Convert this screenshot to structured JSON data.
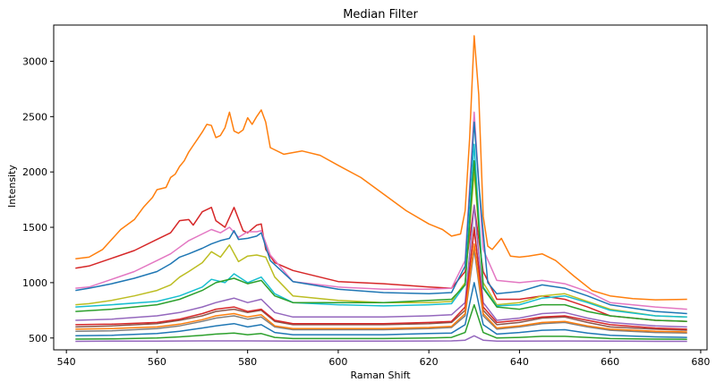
{
  "chart_data": {
    "type": "line",
    "title": "Median Filter",
    "xlabel": "Raman Shift",
    "ylabel": "Intensity",
    "xlim": [
      537.2,
      681.4
    ],
    "ylim": [
      393,
      3327
    ],
    "xticks": [
      540,
      560,
      580,
      600,
      620,
      640,
      660,
      680
    ],
    "yticks": [
      500,
      1000,
      1500,
      2000,
      2500,
      3000
    ],
    "grid": false,
    "legend": "none",
    "note_series": "Many overlapping spectra are drawn; the values below describe the prominent visible curves read from the axes.",
    "series": [
      {
        "color": "#ff7f0e",
        "x": [
          542,
          545,
          548,
          550,
          552,
          555,
          557,
          559,
          560,
          562,
          563,
          564,
          565,
          566,
          567,
          568,
          569,
          570,
          571,
          572,
          573,
          574,
          575,
          576,
          577,
          578,
          579,
          580,
          581,
          582,
          583,
          584,
          585,
          588,
          592,
          596,
          600,
          605,
          610,
          615,
          620,
          623,
          625,
          627,
          628,
          629,
          630,
          631,
          632,
          633,
          634,
          635,
          636,
          638,
          640,
          642,
          645,
          648,
          652,
          656,
          660,
          665,
          670,
          677
        ],
        "y": [
          1215,
          1230,
          1300,
          1390,
          1480,
          1570,
          1680,
          1770,
          1840,
          1860,
          1950,
          1980,
          2050,
          2100,
          2180,
          2240,
          2300,
          2360,
          2430,
          2420,
          2310,
          2330,
          2400,
          2540,
          2370,
          2350,
          2380,
          2490,
          2430,
          2500,
          2560,
          2450,
          2220,
          2160,
          2190,
          2150,
          2060,
          1950,
          1800,
          1650,
          1530,
          1480,
          1420,
          1440,
          1650,
          2300,
          3230,
          2700,
          1600,
          1330,
          1300,
          1350,
          1400,
          1240,
          1230,
          1240,
          1260,
          1200,
          1060,
          930,
          880,
          855,
          845,
          850
        ]
      },
      {
        "color": "#d62728",
        "x": [
          542,
          545,
          550,
          555,
          560,
          563,
          565,
          567,
          568,
          570,
          572,
          573,
          575,
          577,
          579,
          580,
          582,
          583,
          584,
          586,
          590,
          600,
          610,
          620,
          625,
          628,
          630,
          632,
          635,
          640,
          645,
          650,
          655,
          660,
          670,
          677
        ],
        "y": [
          1130,
          1150,
          1220,
          1290,
          1390,
          1450,
          1560,
          1570,
          1520,
          1640,
          1680,
          1560,
          1500,
          1680,
          1470,
          1450,
          1520,
          1530,
          1300,
          1180,
          1110,
          1010,
          990,
          960,
          950,
          1100,
          1700,
          1100,
          850,
          850,
          880,
          850,
          780,
          700,
          660,
          650
        ]
      },
      {
        "color": "#e377c2",
        "x": [
          542,
          545,
          550,
          555,
          560,
          563,
          565,
          567,
          570,
          572,
          574,
          576,
          578,
          580,
          582,
          583,
          585,
          590,
          600,
          610,
          620,
          625,
          628,
          630,
          632,
          635,
          640,
          645,
          650,
          655,
          660,
          670,
          677
        ],
        "y": [
          950,
          960,
          1030,
          1100,
          1200,
          1260,
          1320,
          1380,
          1440,
          1480,
          1450,
          1500,
          1410,
          1460,
          1460,
          1470,
          1250,
          1010,
          960,
          940,
          940,
          950,
          1200,
          2540,
          1300,
          1020,
          1000,
          1020,
          990,
          920,
          820,
          780,
          760
        ]
      },
      {
        "color": "#1f77b4",
        "x": [
          542,
          545,
          550,
          555,
          560,
          563,
          565,
          567,
          570,
          572,
          574,
          576,
          577,
          578,
          580,
          582,
          583,
          585,
          590,
          600,
          610,
          620,
          625,
          628,
          630,
          631,
          633,
          635,
          640,
          645,
          650,
          655,
          660,
          670,
          677
        ],
        "y": [
          930,
          950,
          990,
          1040,
          1100,
          1170,
          1230,
          1260,
          1310,
          1350,
          1380,
          1400,
          1470,
          1390,
          1400,
          1420,
          1450,
          1200,
          1010,
          940,
          910,
          900,
          910,
          1150,
          2450,
          1900,
          1000,
          900,
          920,
          980,
          950,
          880,
          800,
          740,
          720
        ]
      },
      {
        "color": "#bcbd22",
        "x": [
          542,
          545,
          550,
          555,
          560,
          563,
          565,
          567,
          570,
          572,
          574,
          576,
          578,
          580,
          582,
          584,
          586,
          590,
          600,
          610,
          620,
          625,
          628,
          630,
          632,
          635,
          640,
          645,
          650,
          655,
          660,
          670,
          677
        ],
        "y": [
          800,
          810,
          840,
          880,
          930,
          980,
          1050,
          1100,
          1180,
          1280,
          1230,
          1340,
          1190,
          1240,
          1250,
          1230,
          1050,
          880,
          840,
          820,
          820,
          830,
          1000,
          2000,
          1000,
          800,
          820,
          880,
          900,
          830,
          760,
          700,
          690
        ]
      },
      {
        "color": "#17becf",
        "x": [
          542,
          550,
          560,
          565,
          570,
          572,
          575,
          577,
          580,
          583,
          586,
          590,
          600,
          610,
          620,
          625,
          628,
          630,
          632,
          635,
          640,
          645,
          650,
          655,
          660,
          670,
          677
        ],
        "y": [
          780,
          800,
          830,
          880,
          960,
          1030,
          1000,
          1080,
          1000,
          1050,
          900,
          820,
          800,
          790,
          800,
          810,
          980,
          2250,
          960,
          790,
          800,
          860,
          880,
          820,
          750,
          700,
          690
        ]
      },
      {
        "color": "#2ca02c",
        "x": [
          542,
          550,
          560,
          565,
          570,
          573,
          577,
          580,
          583,
          586,
          590,
          600,
          610,
          620,
          625,
          628,
          630,
          632,
          635,
          640,
          645,
          650,
          655,
          660,
          670,
          677
        ],
        "y": [
          740,
          760,
          800,
          850,
          930,
          1000,
          1040,
          990,
          1020,
          880,
          820,
          820,
          820,
          840,
          850,
          980,
          2100,
          950,
          780,
          760,
          800,
          800,
          740,
          700,
          660,
          650
        ]
      },
      {
        "color": "#9467bd",
        "x": [
          542,
          550,
          560,
          565,
          570,
          573,
          577,
          580,
          583,
          586,
          590,
          600,
          610,
          620,
          625,
          628,
          630,
          632,
          635,
          640,
          645,
          650,
          655,
          660,
          670,
          677
        ],
        "y": [
          660,
          670,
          700,
          730,
          780,
          820,
          860,
          820,
          850,
          730,
          690,
          690,
          690,
          700,
          710,
          820,
          1700,
          820,
          660,
          680,
          720,
          730,
          680,
          640,
          610,
          600
        ]
      },
      {
        "color": "#8c564b",
        "x": [
          542,
          550,
          560,
          565,
          570,
          573,
          577,
          580,
          583,
          586,
          590,
          600,
          610,
          620,
          625,
          628,
          630,
          632,
          635,
          640,
          645,
          650,
          655,
          660,
          670,
          677
        ],
        "y": [
          600,
          610,
          630,
          660,
          700,
          740,
          760,
          730,
          750,
          650,
          620,
          620,
          620,
          630,
          640,
          750,
          1500,
          750,
          620,
          640,
          680,
          690,
          640,
          600,
          580,
          570
        ]
      },
      {
        "color": "#7f7f7f",
        "x": [
          542,
          550,
          560,
          565,
          570,
          573,
          577,
          580,
          583,
          586,
          590,
          600,
          610,
          620,
          625,
          628,
          630,
          632,
          635,
          640,
          645,
          650,
          655,
          660,
          670,
          677
        ],
        "y": [
          560,
          565,
          585,
          610,
          650,
          680,
          700,
          670,
          690,
          600,
          575,
          575,
          575,
          585,
          595,
          700,
          1300,
          700,
          580,
          600,
          630,
          640,
          600,
          570,
          550,
          545
        ]
      },
      {
        "color": "#d62728",
        "x": [
          542,
          550,
          560,
          565,
          570,
          573,
          577,
          580,
          583,
          586,
          590,
          600,
          610,
          620,
          625,
          628,
          630,
          632,
          635,
          640,
          645,
          650,
          655,
          660,
          670,
          677
        ],
        "y": [
          620,
          625,
          640,
          670,
          720,
          760,
          780,
          740,
          760,
          660,
          630,
          630,
          630,
          640,
          650,
          780,
          1480,
          780,
          640,
          660,
          690,
          700,
          660,
          620,
          590,
          580
        ]
      },
      {
        "color": "#1f77b4",
        "x": [
          542,
          550,
          560,
          565,
          570,
          573,
          577,
          580,
          583,
          586,
          590,
          600,
          610,
          620,
          625,
          628,
          630,
          632,
          635,
          640,
          645,
          650,
          655,
          660,
          670,
          677
        ],
        "y": [
          520,
          525,
          540,
          560,
          590,
          610,
          630,
          600,
          620,
          550,
          530,
          530,
          530,
          540,
          545,
          620,
          1000,
          620,
          535,
          550,
          570,
          575,
          545,
          525,
          510,
          505
        ]
      },
      {
        "color": "#ff7f0e",
        "x": [
          542,
          550,
          560,
          565,
          570,
          573,
          577,
          580,
          583,
          586,
          590,
          600,
          610,
          620,
          625,
          628,
          630,
          632,
          635,
          640,
          645,
          650,
          655,
          660,
          670,
          677
        ],
        "y": [
          580,
          585,
          600,
          625,
          665,
          700,
          720,
          690,
          710,
          610,
          585,
          585,
          585,
          595,
          605,
          720,
          1350,
          720,
          590,
          610,
          640,
          650,
          610,
          580,
          560,
          555
        ]
      },
      {
        "color": "#2ca02c",
        "x": [
          542,
          550,
          560,
          565,
          570,
          573,
          577,
          580,
          583,
          586,
          590,
          600,
          610,
          620,
          625,
          628,
          630,
          632,
          635,
          640,
          645,
          650,
          655,
          660,
          670,
          677
        ],
        "y": [
          490,
          492,
          500,
          510,
          525,
          535,
          545,
          530,
          540,
          505,
          495,
          495,
          495,
          500,
          505,
          550,
          800,
          550,
          500,
          505,
          515,
          515,
          505,
          495,
          490,
          488
        ]
      },
      {
        "color": "#9467bd",
        "x": [
          542,
          550,
          560,
          570,
          580,
          590,
          600,
          610,
          620,
          625,
          628,
          630,
          632,
          635,
          640,
          650,
          660,
          670,
          677
        ],
        "y": [
          470,
          471,
          472,
          474,
          474,
          472,
          472,
          472,
          473,
          474,
          480,
          520,
          480,
          472,
          472,
          473,
          471,
          470,
          470
        ]
      }
    ]
  }
}
